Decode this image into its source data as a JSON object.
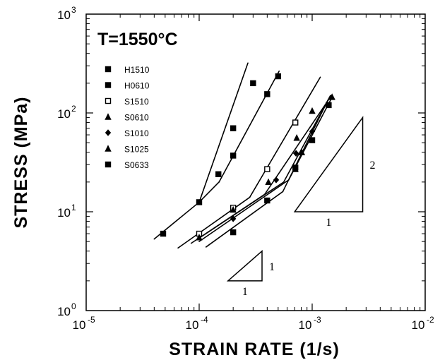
{
  "chart_data": {
    "type": "scatter",
    "annotation": "T=1550°C",
    "xlabel": "STRAIN RATE (1/s)",
    "ylabel": "STRESS (MPa)",
    "x_scale": "log",
    "y_scale": "log",
    "xlim": [
      1e-05,
      0.01
    ],
    "ylim": [
      1,
      1000
    ],
    "x_ticks": [
      {
        "base": "10",
        "exp": "-5"
      },
      {
        "base": "10",
        "exp": "-4"
      },
      {
        "base": "10",
        "exp": "-3"
      },
      {
        "base": "10",
        "exp": "-2"
      }
    ],
    "y_ticks": [
      {
        "base": "10",
        "exp": "0"
      },
      {
        "base": "10",
        "exp": "1"
      },
      {
        "base": "10",
        "exp": "2"
      },
      {
        "base": "10",
        "exp": "3"
      }
    ],
    "grid": false,
    "legend_position": "top-left",
    "series": [
      {
        "name": "H1510",
        "marker": "square-filled",
        "points": [
          [
            0.0001,
            12.5
          ],
          [
            0.0002,
            37
          ],
          [
            0.0004,
            155
          ],
          [
            0.0005,
            235
          ]
        ]
      },
      {
        "name": "H0610",
        "marker": "square-filled",
        "points": [
          [
            4.8e-05,
            6
          ],
          [
            0.000148,
            24
          ],
          [
            0.0002,
            70
          ],
          [
            0.0003,
            200
          ]
        ]
      },
      {
        "name": "S1510",
        "marker": "square-open",
        "points": [
          [
            0.0001,
            6
          ],
          [
            0.0002,
            11
          ],
          [
            0.0004,
            27
          ],
          [
            0.00071,
            80
          ]
        ]
      },
      {
        "name": "S0610",
        "marker": "triangle-filled",
        "points": [
          [
            0.00041,
            20
          ],
          [
            0.00073,
            56
          ],
          [
            0.001,
            105
          ],
          [
            0.0015,
            145
          ]
        ]
      },
      {
        "name": "S1010",
        "marker": "diamond-filled",
        "points": [
          [
            0.0002,
            8.5
          ],
          [
            0.00048,
            21
          ],
          [
            0.00072,
            39
          ],
          [
            0.001,
            65
          ]
        ]
      },
      {
        "name": "S1025",
        "marker": "triangle-filled",
        "points": [
          [
            0.0001,
            5.5
          ],
          [
            0.0002,
            10.5
          ],
          [
            0.00071,
            27
          ],
          [
            0.00081,
            40
          ]
        ]
      },
      {
        "name": "S0633",
        "marker": "square-filled",
        "points": [
          [
            0.0002,
            6.2
          ],
          [
            0.0004,
            13
          ],
          [
            0.00071,
            28
          ],
          [
            0.001,
            53
          ],
          [
            0.0014,
            120
          ]
        ]
      }
    ],
    "fit_lines": [
      {
        "segments": [
          [
            [
              4e-05,
              5.3
            ],
            [
              0.0001,
              12.5
            ]
          ],
          [
            [
              0.0001,
              12.5
            ],
            [
              0.00027,
              320
            ]
          ]
        ]
      },
      {
        "segments": [
          [
            [
              0.0001,
              12.5
            ],
            [
              0.00015,
              20
            ]
          ],
          [
            [
              0.00015,
              20
            ],
            [
              0.00051,
              265
            ]
          ]
        ]
      },
      {
        "segments": [
          [
            [
              6.5e-05,
              4.3
            ],
            [
              0.00028,
              14
            ]
          ],
          [
            [
              0.00028,
              14
            ],
            [
              0.00118,
              230
            ]
          ]
        ]
      },
      {
        "segments": [
          [
            [
              8.5e-05,
              4.8
            ],
            [
              0.00038,
              15
            ]
          ],
          [
            [
              0.00038,
              15
            ],
            [
              0.00148,
              150
            ]
          ]
        ]
      },
      {
        "segments": [
          [
            [
              9.5e-05,
              5.2
            ],
            [
              0.00056,
              20
            ]
          ],
          [
            [
              0.00056,
              20
            ],
            [
              0.00145,
              150
            ]
          ]
        ]
      },
      {
        "segments": [
          [
            [
              0.0001,
              5.0
            ],
            [
              0.00062,
              21
            ]
          ],
          [
            [
              0.00062,
              21
            ],
            [
              0.00148,
              140
            ]
          ]
        ]
      },
      {
        "segments": [
          [
            [
              0.000115,
              4.4
            ],
            [
              0.00055,
              16
            ]
          ],
          [
            [
              0.00055,
              16
            ],
            [
              0.00138,
              135
            ]
          ]
        ]
      }
    ],
    "slope_triangles": [
      {
        "label_run": "1",
        "label_rise": "1",
        "corner": [
          0.00018,
          2
        ],
        "run_end": [
          0.00036,
          2
        ],
        "rise_top": [
          0.00036,
          4
        ]
      },
      {
        "label_run": "1",
        "label_rise": "2",
        "corner": [
          0.0007,
          10
        ],
        "run_end": [
          0.0028,
          10
        ],
        "rise_top": [
          0.0028,
          90
        ]
      }
    ]
  }
}
